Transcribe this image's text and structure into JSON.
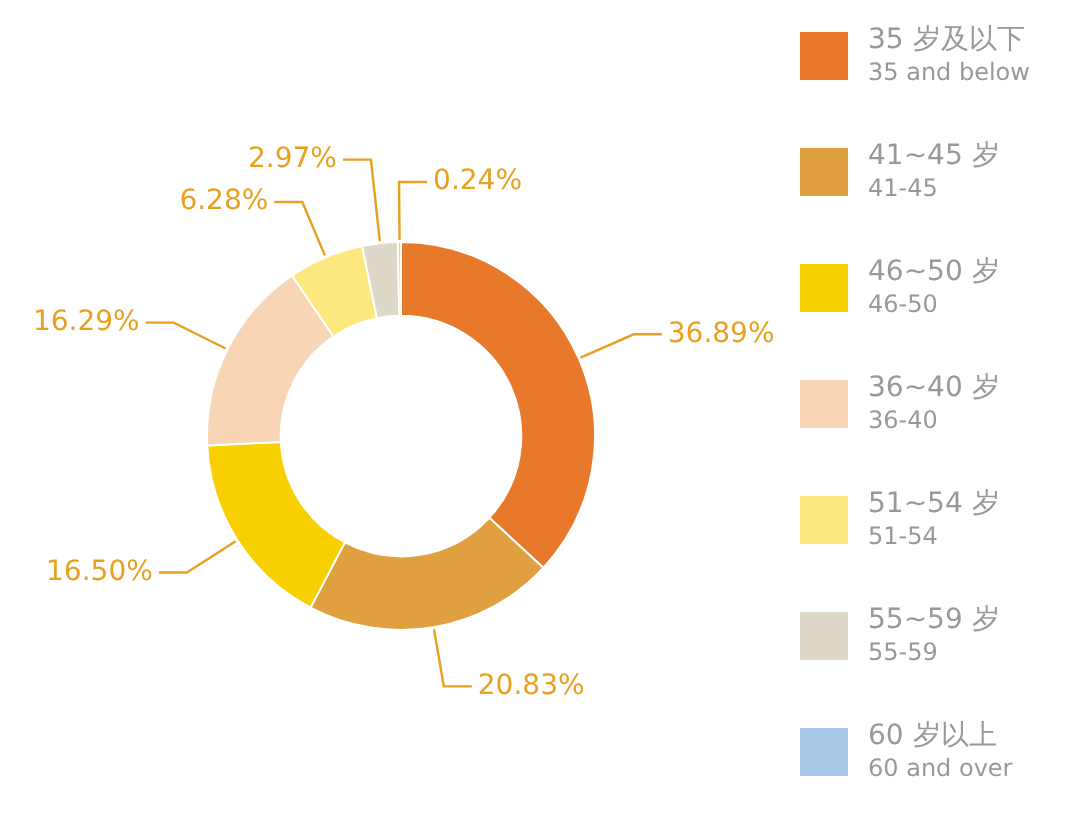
{
  "chart_data": {
    "type": "donut",
    "categories": [
      "35 岁及以下\n35 and below",
      "41~45 岁\n41-45",
      "46~50 岁\n46-50",
      "36~40 岁\n36-40",
      "51~54 岁\n51-54",
      "55~59 岁\n55-59",
      "60 岁以上\n60 and over"
    ],
    "values": [
      36.89,
      20.83,
      16.5,
      16.29,
      6.28,
      2.97,
      0.24
    ],
    "value_labels": [
      "36.89%",
      "20.83%",
      "16.50%",
      "16.29%",
      "6.28%",
      "2.97%",
      "0.24%"
    ],
    "colors": [
      "#e8792a",
      "#e0a040",
      "#f8d000",
      "#f8d5b5",
      "#fde880",
      "#ddd8c8",
      "#a8c8e8"
    ],
    "legend": "right"
  }
}
